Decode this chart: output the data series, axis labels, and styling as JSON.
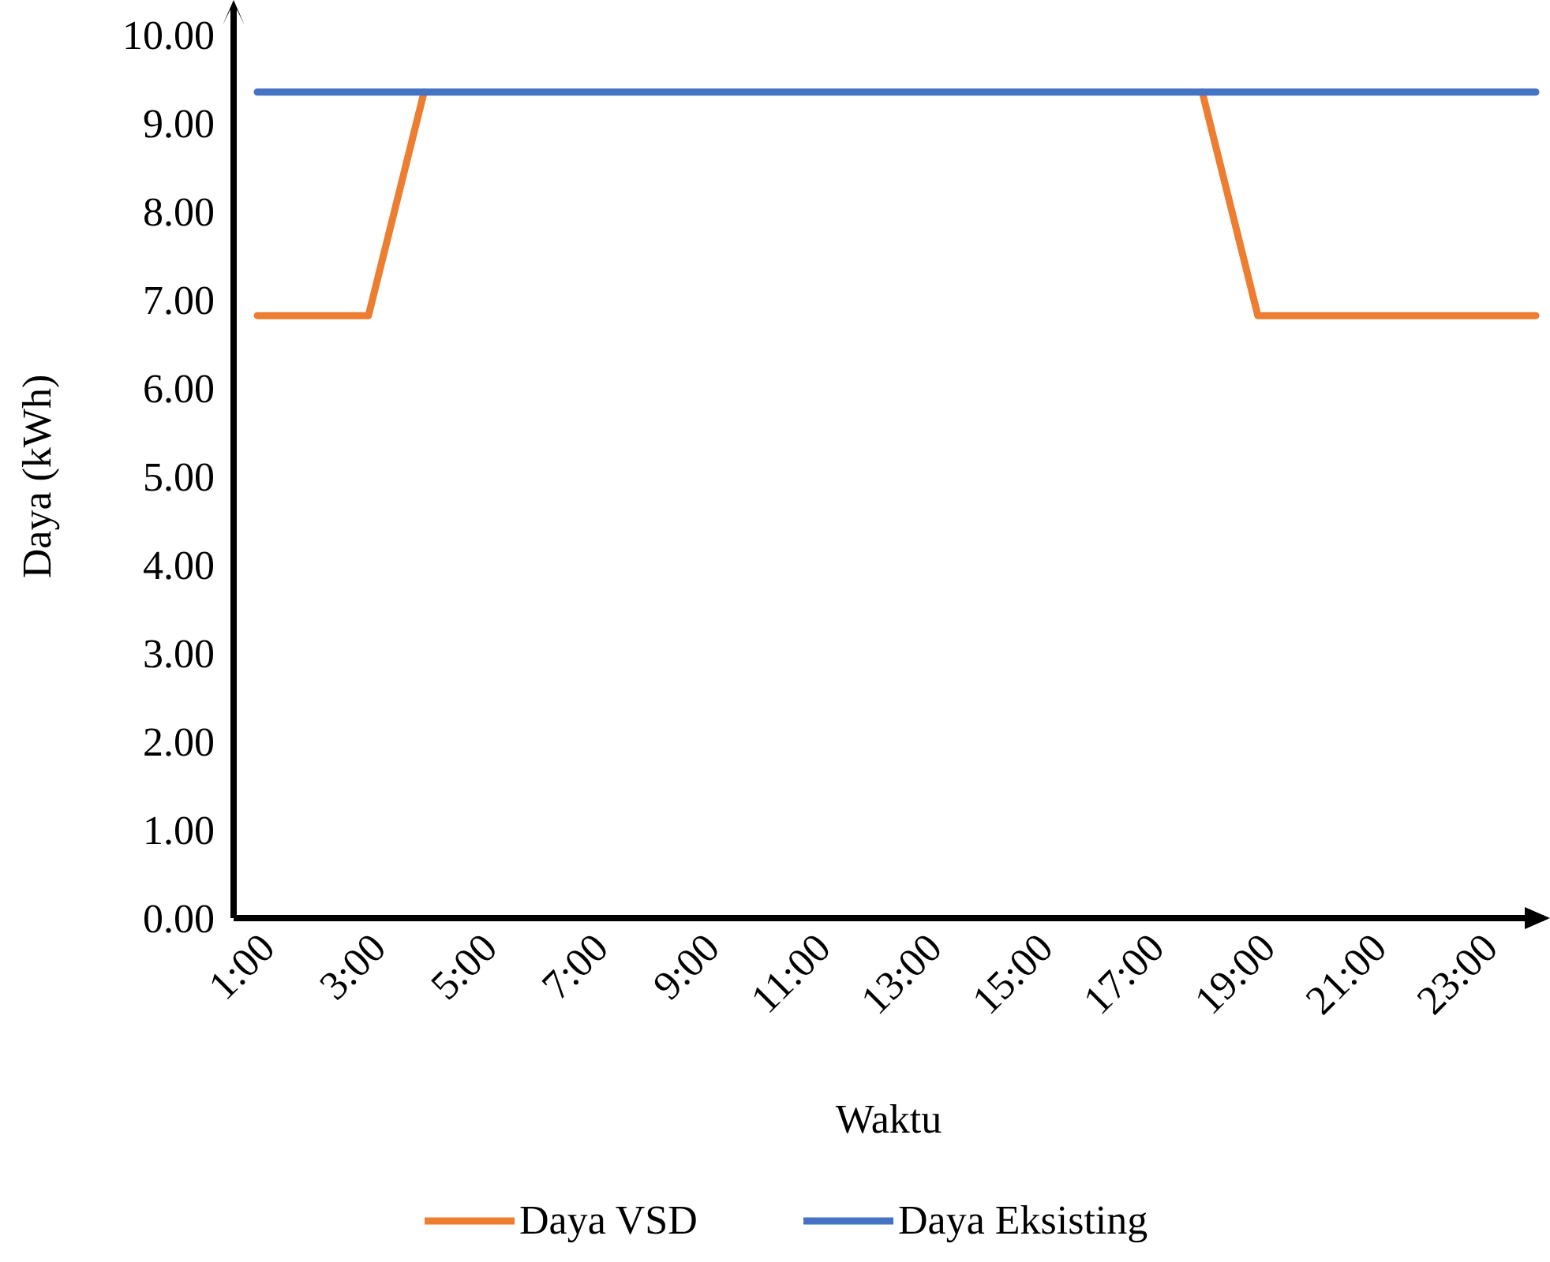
{
  "chart_data": {
    "type": "line",
    "xlabel": "Waktu",
    "ylabel": "Daya (kWh)",
    "categories": [
      "1:00",
      null,
      "3:00",
      null,
      "5:00",
      null,
      "7:00",
      null,
      "9:00",
      null,
      "11:00",
      null,
      "13:00",
      null,
      "15:00",
      null,
      "17:00",
      null,
      "19:00",
      null,
      "21:00",
      null,
      "23:00",
      null
    ],
    "series": [
      {
        "name": "Daya VSD",
        "color": "#ed7d31",
        "values": [
          6.82,
          6.82,
          6.82,
          9.35,
          null,
          null,
          null,
          null,
          null,
          null,
          null,
          null,
          null,
          null,
          null,
          null,
          null,
          9.35,
          6.82,
          6.82,
          6.82,
          6.82,
          6.82,
          6.82
        ]
      },
      {
        "name": "Daya Eksisting",
        "color": "#4472c4",
        "values": [
          9.35,
          9.35,
          9.35,
          9.35,
          9.35,
          9.35,
          9.35,
          9.35,
          9.35,
          9.35,
          9.35,
          9.35,
          9.35,
          9.35,
          9.35,
          9.35,
          9.35,
          9.35,
          9.35,
          9.35,
          9.35,
          9.35,
          9.35,
          9.35
        ]
      }
    ],
    "ylim": [
      0,
      10
    ],
    "yticks": [
      {
        "value": 0,
        "label": "0.00"
      },
      {
        "value": 1,
        "label": "1.00"
      },
      {
        "value": 2,
        "label": "2.00"
      },
      {
        "value": 3,
        "label": "3.00"
      },
      {
        "value": 4,
        "label": "4.00"
      },
      {
        "value": 5,
        "label": "5.00"
      },
      {
        "value": 6,
        "label": "6.00"
      },
      {
        "value": 7,
        "label": "7.00"
      },
      {
        "value": 8,
        "label": "8.00"
      },
      {
        "value": 9,
        "label": "9.00"
      },
      {
        "value": 10,
        "label": "10.00"
      }
    ],
    "grid": false,
    "legend": "bottom",
    "marker": "none",
    "line_style": "solid"
  }
}
